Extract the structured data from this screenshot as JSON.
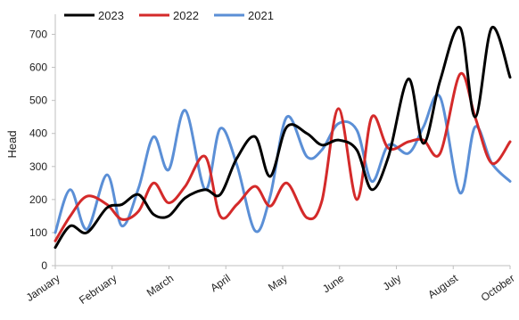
{
  "chart_data": {
    "type": "line",
    "title": "",
    "xlabel": "",
    "ylabel": "Head",
    "x_tick_labels": [
      "January",
      "February",
      "March",
      "April",
      "May",
      "June",
      "July",
      "August",
      "October"
    ],
    "ylim": [
      0,
      750
    ],
    "yticks": [
      0,
      100,
      200,
      300,
      400,
      500,
      600,
      700
    ],
    "grid": false,
    "legend": "top-left",
    "series": [
      {
        "name": "2023",
        "color": "#000000",
        "x": [
          "Jan 1",
          "Jan 10",
          "Jan 20",
          "Feb 1",
          "Feb 10",
          "Feb 20",
          "Mar 1",
          "Mar 10",
          "Mar 20",
          "Apr 1",
          "Apr 10",
          "Apr 20",
          "May 1",
          "May 10",
          "May 20",
          "Jun 1",
          "Jun 10",
          "Jun 20",
          "Jul 1",
          "Jul 10",
          "Jul 20",
          "Aug 1",
          "Aug 10",
          "Aug 20",
          "Sep 1",
          "Sep 10",
          "Sep 20",
          "Oct 1"
        ],
        "values": [
          55,
          120,
          100,
          175,
          185,
          215,
          155,
          150,
          205,
          230,
          215,
          325,
          390,
          270,
          420,
          400,
          365,
          380,
          350,
          230,
          330,
          565,
          370,
          560,
          720,
          450,
          720,
          570
        ]
      },
      {
        "name": "2022",
        "color": "#d42a2a",
        "x": [
          "Jan 1",
          "Jan 10",
          "Jan 20",
          "Feb 1",
          "Feb 10",
          "Feb 20",
          "Mar 1",
          "Mar 10",
          "Mar 20",
          "Apr 1",
          "Apr 10",
          "Apr 20",
          "May 1",
          "May 10",
          "May 20",
          "Jun 1",
          "Jun 10",
          "Jun 20",
          "Jul 1",
          "Jul 10",
          "Jul 20",
          "Aug 1",
          "Aug 10",
          "Aug 20",
          "Sep 1",
          "Sep 10",
          "Sep 20",
          "Oct 1"
        ],
        "values": [
          75,
          150,
          210,
          185,
          140,
          165,
          250,
          190,
          240,
          330,
          150,
          185,
          240,
          180,
          250,
          145,
          195,
          475,
          200,
          450,
          355,
          375,
          380,
          340,
          580,
          450,
          310,
          375
        ]
      },
      {
        "name": "2021",
        "color": "#5b8fd6",
        "x": [
          "Jan 1",
          "Jan 10",
          "Jan 20",
          "Feb 1",
          "Feb 10",
          "Feb 20",
          "Mar 1",
          "Mar 10",
          "Mar 20",
          "Apr 1",
          "Apr 10",
          "Apr 20",
          "May 1",
          "May 10",
          "May 20",
          "Jun 1",
          "Jun 10",
          "Jun 20",
          "Jul 1",
          "Jul 10",
          "Jul 20",
          "Aug 1",
          "Aug 10",
          "Aug 20",
          "Sep 1",
          "Sep 10",
          "Sep 20",
          "Oct 1"
        ],
        "values": [
          100,
          230,
          110,
          275,
          120,
          235,
          390,
          290,
          470,
          230,
          415,
          305,
          105,
          210,
          450,
          330,
          350,
          430,
          410,
          255,
          365,
          340,
          420,
          510,
          220,
          420,
          310,
          255
        ]
      }
    ]
  }
}
